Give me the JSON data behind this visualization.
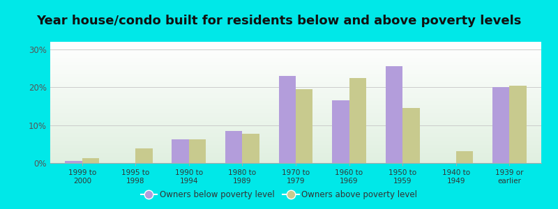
{
  "title": "Year house/condo built for residents below and above poverty levels",
  "categories": [
    "1999 to\n2000",
    "1995 to\n1998",
    "1990 to\n1994",
    "1980 to\n1989",
    "1970 to\n1979",
    "1960 to\n1969",
    "1950 to\n1959",
    "1940 to\n1949",
    "1939 or\nearlier"
  ],
  "below_poverty": [
    0.5,
    0.0,
    6.2,
    8.5,
    23.0,
    16.5,
    25.5,
    0.0,
    20.0
  ],
  "above_poverty": [
    1.2,
    3.8,
    6.2,
    7.8,
    19.5,
    22.5,
    14.5,
    3.2,
    20.5
  ],
  "below_color": "#b39ddb",
  "above_color": "#c8ca8e",
  "ylim": [
    0,
    32
  ],
  "yticks": [
    0,
    10,
    20,
    30
  ],
  "ytick_labels": [
    "0%",
    "10%",
    "20%",
    "30%"
  ],
  "outer_bg": "#00e8e8",
  "legend_below": "Owners below poverty level",
  "legend_above": "Owners above poverty level",
  "title_fontsize": 13,
  "bar_width": 0.32,
  "grid_color": "#cccccc"
}
